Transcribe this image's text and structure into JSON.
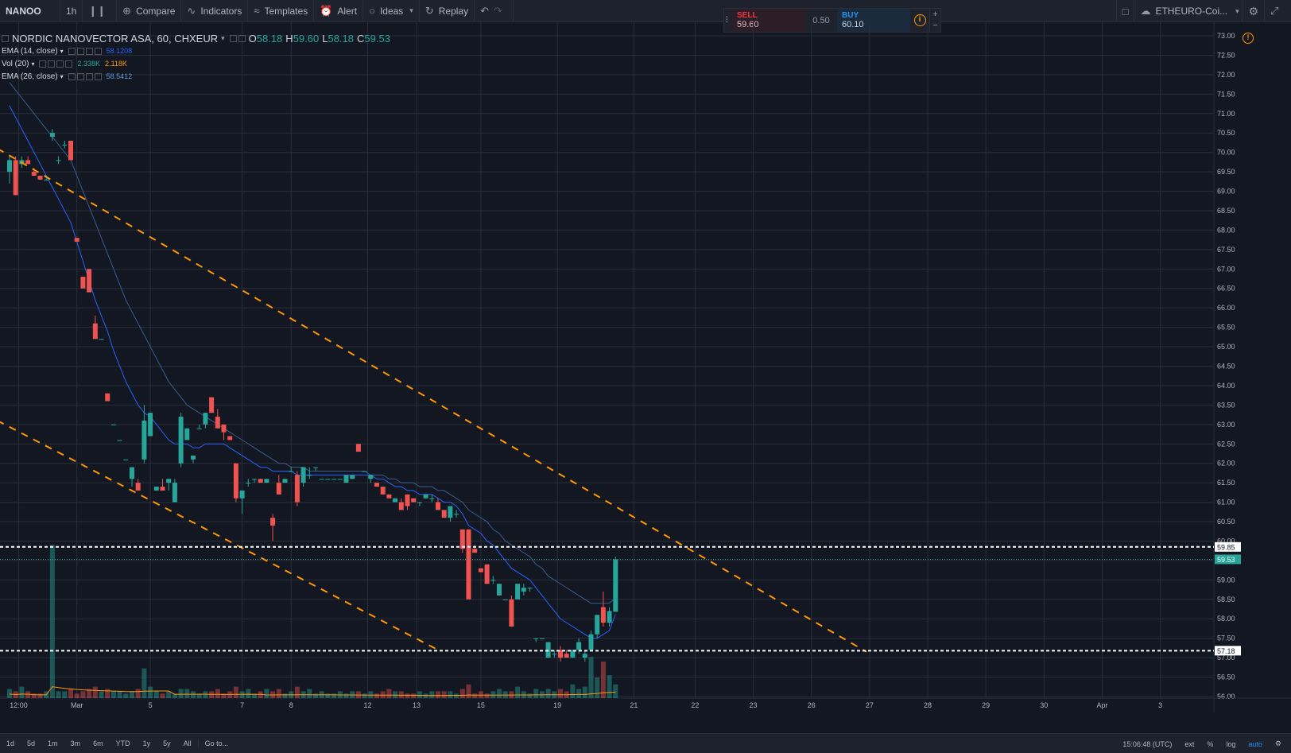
{
  "toolbar": {
    "symbol": "NANOO",
    "interval": "1h",
    "compare": "Compare",
    "indicators": "Indicators",
    "templates": "Templates",
    "alert": "Alert",
    "ideas": "Ideas",
    "replay": "Replay",
    "layout_name": "ETHEURO-Coi..."
  },
  "trade_panel": {
    "sell_label": "SELL",
    "sell_price": "59.60",
    "spread": "0.50",
    "buy_label": "BUY",
    "buy_price": "60.10",
    "plus": "+",
    "minus": "−"
  },
  "legend": {
    "title": "NORDIC NANOVECTOR ASA, 60, CHXEUR",
    "o_label": "O",
    "o": "58.18",
    "h_label": "H",
    "h": "59.60",
    "l_label": "L",
    "l": "58.18",
    "c_label": "C",
    "c": "59.53",
    "ema14_label": "EMA (14, close)",
    "ema14_value": "58.1208",
    "vol_label": "Vol (20)",
    "vol_value1": "2.338K",
    "vol_value2": "2.118K",
    "ema26_label": "EMA (26, close)",
    "ema26_value": "58.5412"
  },
  "bottom": {
    "ranges": [
      "1d",
      "5d",
      "1m",
      "3m",
      "6m",
      "YTD",
      "1y",
      "5y",
      "All"
    ],
    "goto": "Go to...",
    "time": "15:06:48 (UTC)",
    "ext": "ext",
    "pct": "%",
    "log": "log",
    "auto": "auto"
  },
  "colors": {
    "background": "#131722",
    "grid": "#2a2e39",
    "up": "#26a69a",
    "down": "#ef5350",
    "ema14": "#2962ff",
    "ema26": "#3b5b8f",
    "trend": "#ff9800",
    "hline": "#ffffff",
    "vol_ma": "#ff9800"
  },
  "chart_data": {
    "type": "candlestick",
    "title": "NORDIC NANOVECTOR ASA, 60, CHXEUR",
    "ylim": [
      56.0,
      73.0
    ],
    "y_ticks": [
      "73.00",
      "72.50",
      "72.00",
      "71.50",
      "71.00",
      "70.50",
      "70.00",
      "69.50",
      "69.00",
      "68.50",
      "68.00",
      "67.50",
      "67.00",
      "66.50",
      "66.00",
      "65.50",
      "65.00",
      "64.50",
      "64.00",
      "63.50",
      "63.00",
      "62.50",
      "62.00",
      "61.50",
      "61.00",
      "60.50",
      "60.00",
      "59.50",
      "59.00",
      "58.50",
      "58.00",
      "57.50",
      "57.00",
      "56.50",
      "56.00"
    ],
    "x_ticks": [
      "12:00",
      "Mar",
      "5",
      "7",
      "8",
      "12",
      "13",
      "15",
      "19",
      "21",
      "22",
      "23",
      "26",
      "27",
      "28",
      "29",
      "30",
      "Apr",
      "3"
    ],
    "candles": [
      {
        "o": 69.5,
        "h": 69.9,
        "l": 69.2,
        "c": 69.8
      },
      {
        "o": 69.8,
        "h": 69.9,
        "l": 68.9,
        "c": 68.9
      },
      {
        "o": 69.7,
        "h": 69.9,
        "l": 69.6,
        "c": 69.8
      },
      {
        "o": 69.8,
        "h": 69.9,
        "l": 69.7,
        "c": 69.7
      },
      {
        "o": 69.5,
        "h": 69.6,
        "l": 69.4,
        "c": 69.4
      },
      {
        "o": 69.4,
        "h": 69.4,
        "l": 69.3,
        "c": 69.3
      },
      {
        "o": 69.3,
        "h": 69.4,
        "l": 69.3,
        "c": 69.3
      },
      {
        "o": 70.4,
        "h": 70.6,
        "l": 70.3,
        "c": 70.5
      },
      {
        "o": 69.8,
        "h": 69.9,
        "l": 69.7,
        "c": 69.8
      },
      {
        "o": 70.2,
        "h": 70.3,
        "l": 70.1,
        "c": 70.2
      },
      {
        "o": 70.3,
        "h": 70.3,
        "l": 69.8,
        "c": 69.8
      },
      {
        "o": 67.8,
        "h": 67.8,
        "l": 67.7,
        "c": 67.7
      },
      {
        "o": 66.8,
        "h": 66.8,
        "l": 66.5,
        "c": 66.5
      },
      {
        "o": 67.0,
        "h": 67.0,
        "l": 66.4,
        "c": 66.4
      },
      {
        "o": 65.6,
        "h": 65.8,
        "l": 65.2,
        "c": 65.2
      },
      {
        "o": 65.2,
        "h": 65.2,
        "l": 65.2,
        "c": 65.2
      },
      {
        "o": 63.8,
        "h": 63.8,
        "l": 63.6,
        "c": 63.6
      },
      {
        "o": 63.0,
        "h": 63.0,
        "l": 63.0,
        "c": 63.0
      },
      {
        "o": 62.6,
        "h": 62.6,
        "l": 62.6,
        "c": 62.6
      },
      {
        "o": 62.1,
        "h": 62.1,
        "l": 62.1,
        "c": 62.1
      },
      {
        "o": 61.6,
        "h": 61.9,
        "l": 61.4,
        "c": 61.9
      },
      {
        "o": 61.5,
        "h": 61.6,
        "l": 61.3,
        "c": 61.3
      },
      {
        "o": 62.1,
        "h": 63.5,
        "l": 62.0,
        "c": 63.1
      },
      {
        "o": 62.7,
        "h": 63.3,
        "l": 62.7,
        "c": 63.3
      },
      {
        "o": 61.3,
        "h": 61.4,
        "l": 61.3,
        "c": 61.4
      },
      {
        "o": 61.4,
        "h": 61.6,
        "l": 61.3,
        "c": 61.3
      },
      {
        "o": 61.5,
        "h": 61.6,
        "l": 61.3,
        "c": 61.6
      },
      {
        "o": 61.0,
        "h": 61.6,
        "l": 61.0,
        "c": 61.5
      },
      {
        "o": 62.0,
        "h": 63.3,
        "l": 61.9,
        "c": 63.2
      },
      {
        "o": 62.6,
        "h": 62.9,
        "l": 62.6,
        "c": 62.9
      },
      {
        "o": 62.1,
        "h": 62.2,
        "l": 62.0,
        "c": 62.2
      },
      {
        "o": 62.9,
        "h": 63.0,
        "l": 62.9,
        "c": 62.9
      },
      {
        "o": 63.0,
        "h": 63.3,
        "l": 62.9,
        "c": 63.3
      },
      {
        "o": 63.7,
        "h": 63.7,
        "l": 63.3,
        "c": 63.3
      },
      {
        "o": 63.2,
        "h": 63.4,
        "l": 62.9,
        "c": 62.9
      },
      {
        "o": 63.0,
        "h": 63.0,
        "l": 62.6,
        "c": 62.8
      },
      {
        "o": 62.7,
        "h": 62.7,
        "l": 62.6,
        "c": 62.6
      },
      {
        "o": 62.0,
        "h": 62.0,
        "l": 61.0,
        "c": 61.1
      },
      {
        "o": 61.1,
        "h": 61.2,
        "l": 60.7,
        "c": 61.3
      },
      {
        "o": 61.5,
        "h": 61.6,
        "l": 61.4,
        "c": 61.5
      },
      {
        "o": 61.6,
        "h": 61.6,
        "l": 61.5,
        "c": 61.6
      },
      {
        "o": 61.6,
        "h": 61.6,
        "l": 61.5,
        "c": 61.5
      },
      {
        "o": 61.5,
        "h": 61.6,
        "l": 61.5,
        "c": 61.6
      },
      {
        "o": 60.6,
        "h": 60.7,
        "l": 60.0,
        "c": 60.4
      },
      {
        "o": 61.5,
        "h": 61.7,
        "l": 61.2,
        "c": 61.2
      },
      {
        "o": 61.5,
        "h": 61.6,
        "l": 61.5,
        "c": 61.6
      },
      {
        "o": 61.8,
        "h": 61.9,
        "l": 61.8,
        "c": 61.8
      },
      {
        "o": 61.7,
        "h": 61.8,
        "l": 60.9,
        "c": 61.0
      },
      {
        "o": 61.5,
        "h": 61.9,
        "l": 61.4,
        "c": 61.9
      },
      {
        "o": 61.7,
        "h": 61.9,
        "l": 61.6,
        "c": 61.7
      },
      {
        "o": 61.9,
        "h": 61.9,
        "l": 61.8,
        "c": 61.9
      },
      {
        "o": 61.6,
        "h": 61.6,
        "l": 61.6,
        "c": 61.6
      },
      {
        "o": 61.6,
        "h": 61.6,
        "l": 61.6,
        "c": 61.6
      },
      {
        "o": 61.6,
        "h": 61.6,
        "l": 61.6,
        "c": 61.6
      },
      {
        "o": 61.6,
        "h": 61.6,
        "l": 61.6,
        "c": 61.6
      },
      {
        "o": 61.5,
        "h": 61.7,
        "l": 61.5,
        "c": 61.7
      },
      {
        "o": 61.6,
        "h": 61.7,
        "l": 61.6,
        "c": 61.7
      },
      {
        "o": 62.5,
        "h": 62.5,
        "l": 62.3,
        "c": 62.3
      },
      {
        "o": 61.8,
        "h": 61.8,
        "l": 61.8,
        "c": 61.8
      },
      {
        "o": 61.6,
        "h": 61.7,
        "l": 61.5,
        "c": 61.7
      },
      {
        "o": 61.5,
        "h": 61.5,
        "l": 61.4,
        "c": 61.4
      },
      {
        "o": 61.4,
        "h": 61.4,
        "l": 61.2,
        "c": 61.2
      },
      {
        "o": 61.2,
        "h": 61.2,
        "l": 61.1,
        "c": 61.1
      },
      {
        "o": 61.0,
        "h": 61.1,
        "l": 61.0,
        "c": 61.1
      },
      {
        "o": 61.0,
        "h": 61.1,
        "l": 60.8,
        "c": 60.8
      },
      {
        "o": 61.2,
        "h": 61.2,
        "l": 60.8,
        "c": 60.9
      },
      {
        "o": 61.1,
        "h": 61.1,
        "l": 61.0,
        "c": 61.0
      },
      {
        "o": 61.0,
        "h": 61.0,
        "l": 60.9,
        "c": 61.0
      },
      {
        "o": 61.1,
        "h": 61.2,
        "l": 61.1,
        "c": 61.2
      },
      {
        "o": 61.1,
        "h": 61.2,
        "l": 61.0,
        "c": 61.1
      },
      {
        "o": 61.0,
        "h": 61.1,
        "l": 60.8,
        "c": 60.8
      },
      {
        "o": 60.8,
        "h": 60.8,
        "l": 60.6,
        "c": 60.6
      },
      {
        "o": 60.6,
        "h": 60.9,
        "l": 60.5,
        "c": 60.9
      },
      {
        "o": 60.7,
        "h": 60.8,
        "l": 60.6,
        "c": 60.7
      },
      {
        "o": 60.3,
        "h": 60.3,
        "l": 59.7,
        "c": 59.8
      },
      {
        "o": 60.3,
        "h": 60.3,
        "l": 58.5,
        "c": 58.5
      },
      {
        "o": 59.8,
        "h": 59.9,
        "l": 59.7,
        "c": 59.7
      },
      {
        "o": 59.3,
        "h": 59.3,
        "l": 59.2,
        "c": 59.2
      },
      {
        "o": 59.4,
        "h": 59.4,
        "l": 58.9,
        "c": 58.9
      },
      {
        "o": 59.0,
        "h": 59.1,
        "l": 58.9,
        "c": 59.0
      },
      {
        "o": 58.6,
        "h": 58.9,
        "l": 58.6,
        "c": 58.9
      },
      {
        "o": 58.5,
        "h": 58.5,
        "l": 58.5,
        "c": 58.5
      },
      {
        "o": 58.5,
        "h": 58.6,
        "l": 57.8,
        "c": 57.8
      },
      {
        "o": 58.5,
        "h": 58.9,
        "l": 58.5,
        "c": 58.9
      },
      {
        "o": 58.7,
        "h": 58.9,
        "l": 58.6,
        "c": 58.8
      },
      {
        "o": 58.8,
        "h": 58.8,
        "l": 58.7,
        "c": 58.8
      },
      {
        "o": 57.5,
        "h": 57.5,
        "l": 57.4,
        "c": 57.5
      },
      {
        "o": 57.5,
        "h": 57.5,
        "l": 57.5,
        "c": 57.5
      },
      {
        "o": 57.0,
        "h": 57.4,
        "l": 57.0,
        "c": 57.4
      },
      {
        "o": 57.1,
        "h": 57.2,
        "l": 57.0,
        "c": 57.1
      },
      {
        "o": 57.2,
        "h": 57.3,
        "l": 56.9,
        "c": 57.0
      },
      {
        "o": 57.1,
        "h": 57.2,
        "l": 57.0,
        "c": 57.0
      },
      {
        "o": 57.0,
        "h": 57.2,
        "l": 57.0,
        "c": 57.2
      },
      {
        "o": 57.2,
        "h": 57.5,
        "l": 57.1,
        "c": 57.4
      },
      {
        "o": 57.0,
        "h": 57.2,
        "l": 56.9,
        "c": 57.1
      },
      {
        "o": 57.2,
        "h": 57.7,
        "l": 57.2,
        "c": 57.6
      },
      {
        "o": 57.6,
        "h": 58.1,
        "l": 57.5,
        "c": 58.1
      },
      {
        "o": 58.3,
        "h": 58.7,
        "l": 57.8,
        "c": 57.9
      },
      {
        "o": 57.9,
        "h": 58.3,
        "l": 57.8,
        "c": 58.2
      },
      {
        "o": 58.18,
        "h": 59.6,
        "l": 58.18,
        "c": 59.53
      }
    ],
    "ema14": [
      71.2,
      70.9,
      70.6,
      70.3,
      70.0,
      69.7,
      69.4,
      69.1,
      68.8,
      68.5,
      68.2,
      67.7,
      67.2,
      66.7,
      66.2,
      65.8,
      65.4,
      64.9,
      64.5,
      64.1,
      63.8,
      63.5,
      63.3,
      63.2,
      63.0,
      62.8,
      62.6,
      62.5,
      62.5,
      62.5,
      62.4,
      62.4,
      62.5,
      62.5,
      62.5,
      62.5,
      62.4,
      62.3,
      62.2,
      62.1,
      62.0,
      61.9,
      61.9,
      61.8,
      61.8,
      61.8,
      61.8,
      61.7,
      61.7,
      61.7,
      61.7,
      61.7,
      61.7,
      61.7,
      61.7,
      61.7,
      61.7,
      61.7,
      61.7,
      61.7,
      61.6,
      61.6,
      61.5,
      61.4,
      61.4,
      61.3,
      61.3,
      61.2,
      61.2,
      61.2,
      61.1,
      61.0,
      61.0,
      60.9,
      60.7,
      60.4,
      60.3,
      60.2,
      60.0,
      59.9,
      59.7,
      59.5,
      59.3,
      59.2,
      59.1,
      59.0,
      58.8,
      58.6,
      58.4,
      58.2,
      58.0,
      57.9,
      57.8,
      57.7,
      57.6,
      57.5,
      57.5,
      57.6,
      57.7,
      58.12
    ],
    "ema26": [
      71.8,
      71.6,
      71.4,
      71.2,
      71.0,
      70.8,
      70.6,
      70.4,
      70.2,
      70.0,
      69.8,
      69.4,
      69.0,
      68.6,
      68.2,
      67.8,
      67.4,
      67.0,
      66.6,
      66.2,
      65.9,
      65.6,
      65.3,
      65.0,
      64.7,
      64.4,
      64.1,
      63.9,
      63.7,
      63.5,
      63.4,
      63.3,
      63.2,
      63.1,
      63.0,
      62.9,
      62.8,
      62.7,
      62.6,
      62.5,
      62.4,
      62.3,
      62.2,
      62.1,
      62.0,
      62.0,
      61.9,
      61.9,
      61.9,
      61.8,
      61.8,
      61.8,
      61.8,
      61.8,
      61.8,
      61.8,
      61.8,
      61.8,
      61.8,
      61.7,
      61.7,
      61.7,
      61.6,
      61.6,
      61.5,
      61.5,
      61.5,
      61.4,
      61.4,
      61.4,
      61.3,
      61.3,
      61.2,
      61.1,
      61.0,
      60.8,
      60.7,
      60.6,
      60.5,
      60.3,
      60.2,
      60.0,
      59.9,
      59.8,
      59.7,
      59.6,
      59.4,
      59.3,
      59.1,
      59.0,
      58.9,
      58.8,
      58.7,
      58.6,
      58.5,
      58.4,
      58.4,
      58.4,
      58.4,
      58.54
    ],
    "volume": [
      0.4,
      0.3,
      0.5,
      0.3,
      0.2,
      0.2,
      0.3,
      6.7,
      0.3,
      0.3,
      0.4,
      0.2,
      0.3,
      0.4,
      0.5,
      0.3,
      0.4,
      0.3,
      0.3,
      0.2,
      0.3,
      0.4,
      1.3,
      0.5,
      0.3,
      0.2,
      0.3,
      0.2,
      0.4,
      0.4,
      0.3,
      0.2,
      0.3,
      0.3,
      0.4,
      0.2,
      0.3,
      0.5,
      0.3,
      0.4,
      0.2,
      0.3,
      0.4,
      0.3,
      0.4,
      0.2,
      0.3,
      0.5,
      0.3,
      0.4,
      0.2,
      0.3,
      0.2,
      0.2,
      0.3,
      0.2,
      0.3,
      0.3,
      0.2,
      0.3,
      0.2,
      0.3,
      0.4,
      0.3,
      0.3,
      0.2,
      0.2,
      0.3,
      0.2,
      0.3,
      0.3,
      0.3,
      0.3,
      0.2,
      0.4,
      0.6,
      0.2,
      0.3,
      0.2,
      0.3,
      0.4,
      0.3,
      0.3,
      0.5,
      0.3,
      0.2,
      0.4,
      0.3,
      0.4,
      0.3,
      0.4,
      0.3,
      0.6,
      0.4,
      0.5,
      1.8,
      0.9,
      1.6,
      1.0,
      0.6
    ],
    "vol_scale_max": 8.0,
    "hlines": [
      59.85,
      57.18
    ],
    "last_price": 59.53,
    "trendlines": [
      {
        "from": {
          "i": -2,
          "p": 70.1
        },
        "to": {
          "i": 140,
          "p": 57.15
        }
      },
      {
        "from": {
          "i": -2,
          "p": 63.1
        },
        "to": {
          "i": 70,
          "p": 57.2
        }
      }
    ]
  }
}
